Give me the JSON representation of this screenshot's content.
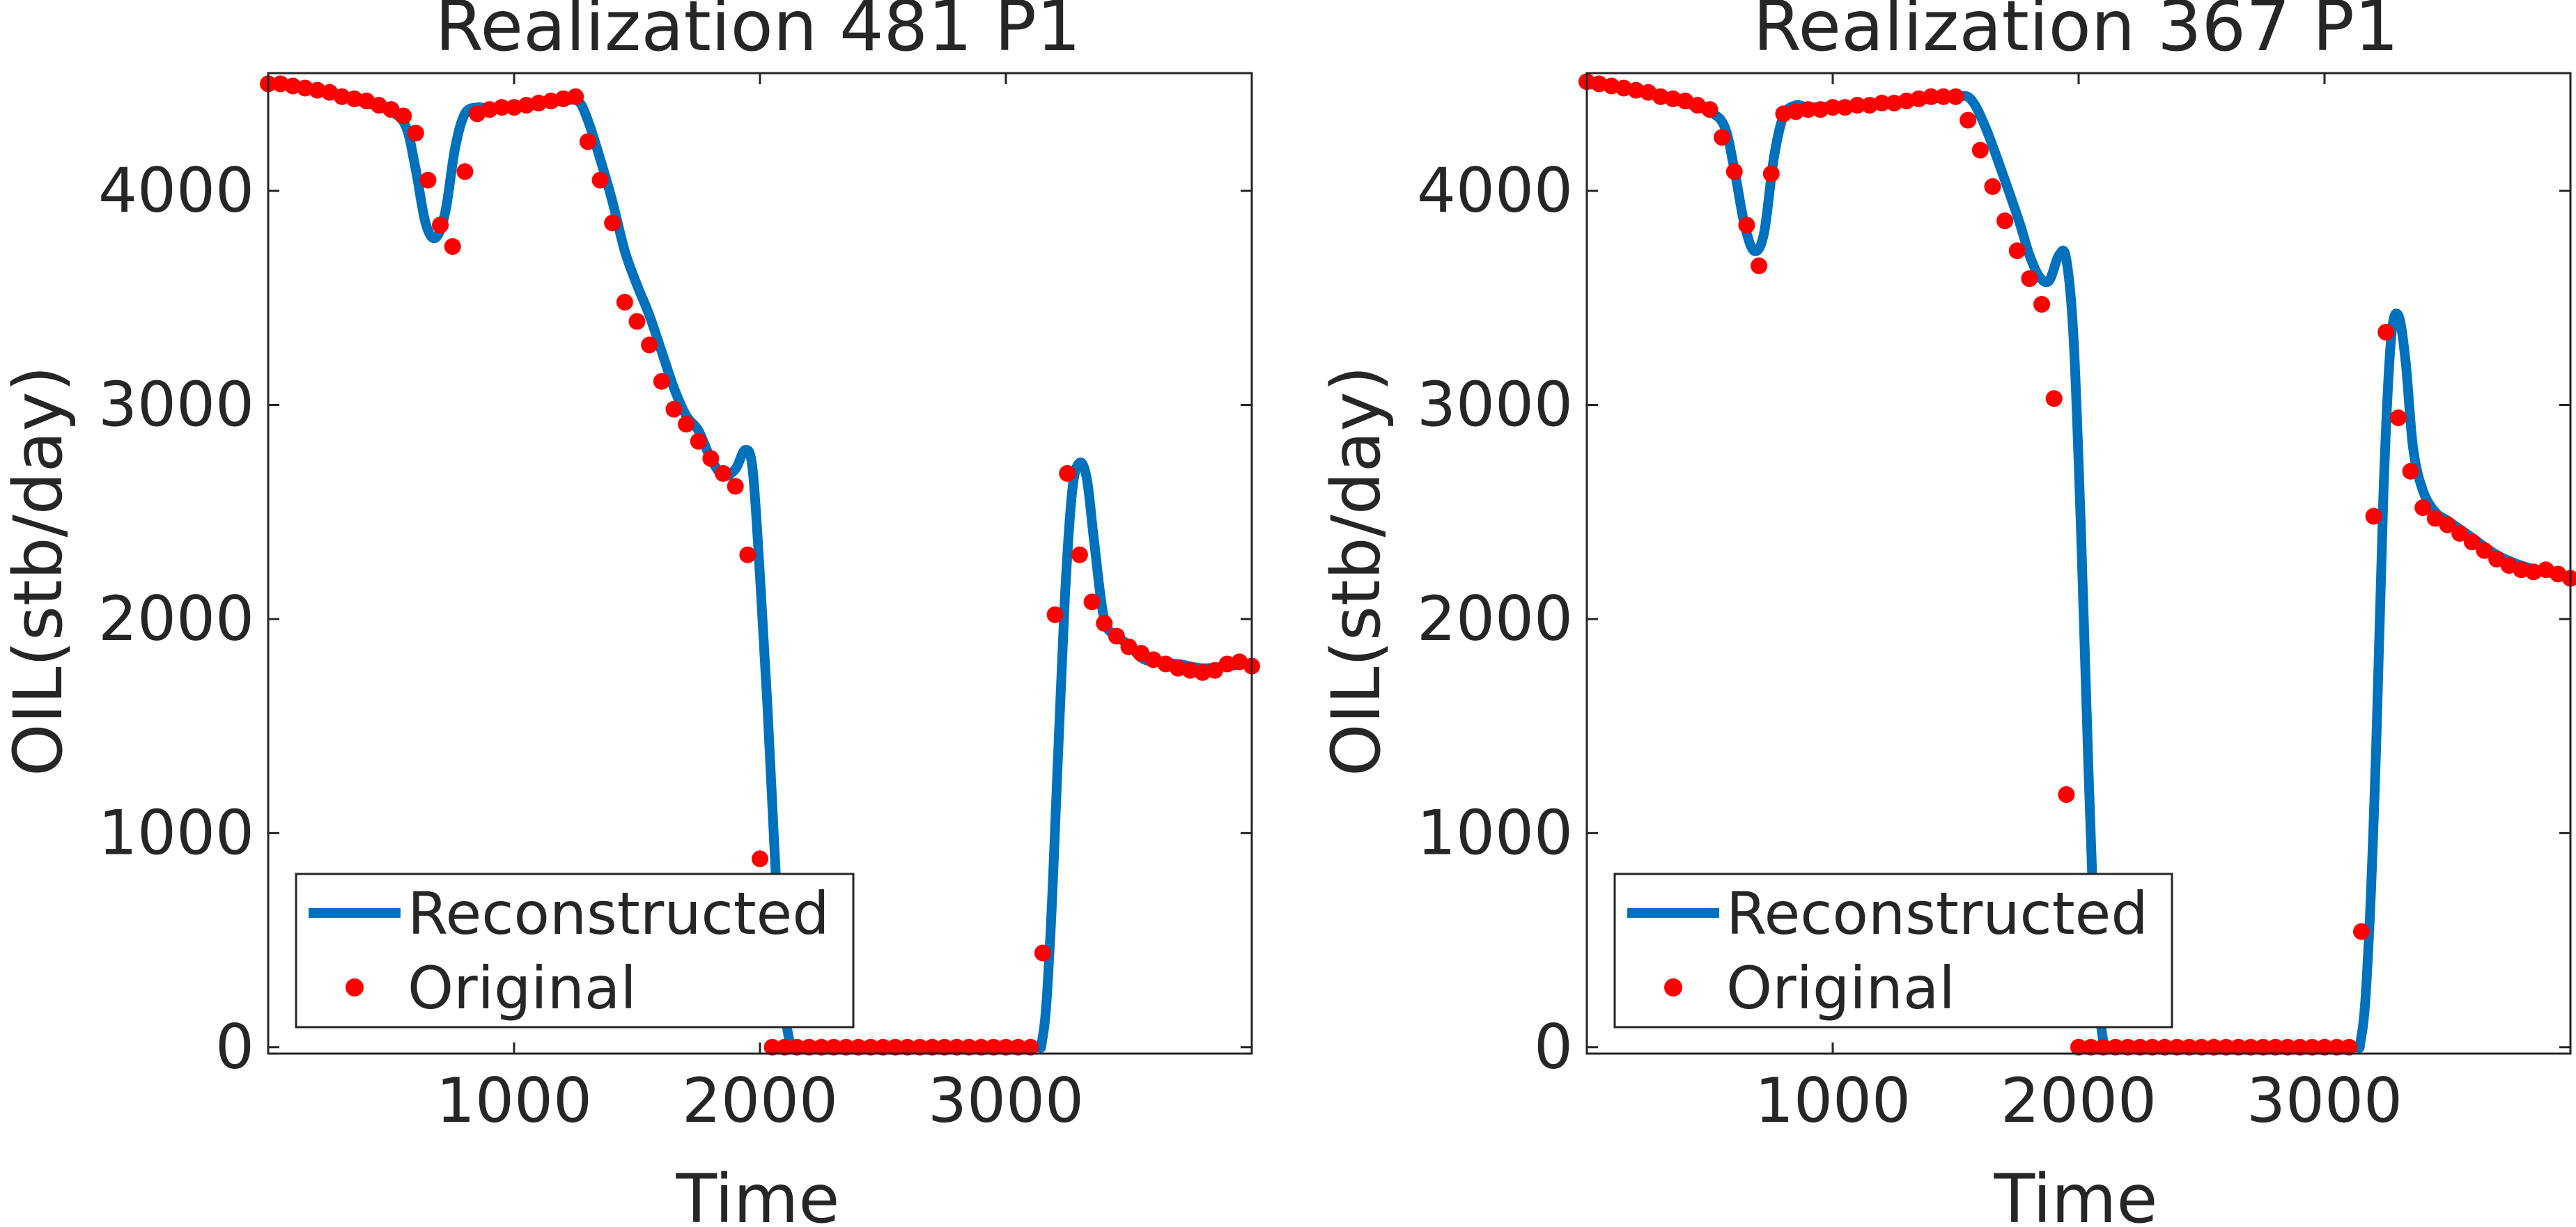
{
  "colors": {
    "reconstructed": "#0072BD",
    "original": "#FF0000",
    "axis": "#262626"
  },
  "chart_data": [
    {
      "type": "line",
      "title": "Realization 481 P1",
      "xlabel": "Time",
      "ylabel": "OIL(stb/day)",
      "xlim": [
        0,
        4000
      ],
      "ylim": [
        -30,
        4550
      ],
      "xticks": [
        1000,
        2000,
        3000
      ],
      "yticks": [
        0,
        1000,
        2000,
        3000,
        4000
      ],
      "xtick_labels": [
        "1000",
        "2000",
        "3000"
      ],
      "ytick_labels": [
        "0",
        "1000",
        "2000",
        "3000",
        "4000"
      ],
      "grid": false,
      "legend": {
        "placement": "bottom-left",
        "entries": [
          "Reconstructed",
          "Original"
        ]
      },
      "series": [
        {
          "name": "Reconstructed",
          "style": "line",
          "x": [
            0,
            100,
            200,
            300,
            400,
            500,
            560,
            600,
            640,
            680,
            720,
            760,
            800,
            850,
            900,
            1000,
            1100,
            1200,
            1260,
            1300,
            1350,
            1400,
            1450,
            1500,
            1550,
            1600,
            1650,
            1700,
            1750,
            1800,
            1850,
            1900,
            1940,
            1970,
            2000,
            2030,
            2060,
            2090,
            2120,
            2150,
            2200,
            2500,
            2800,
            3100,
            3150,
            3180,
            3210,
            3240,
            3270,
            3300,
            3330,
            3360,
            3400,
            3450,
            3500,
            3550,
            3600,
            3700,
            3800,
            3900,
            3980
          ],
          "y": [
            4500,
            4490,
            4470,
            4440,
            4410,
            4370,
            4300,
            4100,
            3850,
            3780,
            3900,
            4200,
            4360,
            4390,
            4385,
            4395,
            4410,
            4420,
            4420,
            4330,
            4150,
            3950,
            3720,
            3560,
            3420,
            3250,
            3080,
            2950,
            2880,
            2750,
            2670,
            2700,
            2790,
            2700,
            2200,
            1600,
            900,
            300,
            30,
            0,
            0,
            0,
            0,
            0,
            50,
            500,
            1300,
            2100,
            2600,
            2730,
            2650,
            2350,
            2000,
            1920,
            1880,
            1820,
            1800,
            1790,
            1770,
            1780,
            1790
          ]
        },
        {
          "name": "Original",
          "style": "scatter",
          "x": [
            0,
            50,
            100,
            150,
            200,
            250,
            300,
            350,
            400,
            450,
            500,
            550,
            600,
            650,
            700,
            750,
            800,
            850,
            900,
            950,
            1000,
            1050,
            1100,
            1150,
            1200,
            1250,
            1300,
            1350,
            1400,
            1450,
            1500,
            1550,
            1600,
            1650,
            1700,
            1750,
            1800,
            1850,
            1900,
            1950,
            2000,
            2050,
            2100,
            2150,
            2200,
            2250,
            2300,
            2350,
            2400,
            2450,
            2500,
            2550,
            2600,
            2650,
            2700,
            2750,
            2800,
            2850,
            2900,
            2950,
            3000,
            3050,
            3100,
            3150,
            3200,
            3250,
            3300,
            3350,
            3400,
            3450,
            3500,
            3550,
            3600,
            3650,
            3700,
            3750,
            3800,
            3850,
            3900,
            3950,
            4000
          ],
          "y": [
            4500,
            4500,
            4490,
            4480,
            4470,
            4460,
            4440,
            4430,
            4420,
            4400,
            4380,
            4350,
            4270,
            4050,
            3840,
            3740,
            4090,
            4360,
            4380,
            4390,
            4390,
            4400,
            4410,
            4420,
            4430,
            4440,
            4230,
            4050,
            3850,
            3480,
            3390,
            3280,
            3110,
            2980,
            2910,
            2830,
            2750,
            2680,
            2620,
            2300,
            880,
            0,
            0,
            0,
            0,
            0,
            0,
            0,
            0,
            0,
            0,
            0,
            0,
            0,
            0,
            0,
            0,
            0,
            0,
            0,
            0,
            0,
            0,
            440,
            2020,
            2680,
            2300,
            2080,
            1980,
            1920,
            1870,
            1840,
            1810,
            1790,
            1770,
            1760,
            1750,
            1760,
            1790,
            1800,
            1780
          ]
        }
      ]
    },
    {
      "type": "line",
      "title": "Realization 367 P1",
      "xlabel": "Time",
      "ylabel": "OIL(stb/day)",
      "xlim": [
        0,
        4000
      ],
      "ylim": [
        -30,
        4550
      ],
      "xticks": [
        1000,
        2000,
        3000
      ],
      "yticks": [
        0,
        1000,
        2000,
        3000,
        4000
      ],
      "xtick_labels": [
        "1000",
        "2000",
        "3000"
      ],
      "ytick_labels": [
        "0",
        "1000",
        "2000",
        "3000",
        "4000"
      ],
      "grid": false,
      "legend": {
        "placement": "bottom-left",
        "entries": [
          "Reconstructed",
          "Original"
        ]
      },
      "series": [
        {
          "name": "Reconstructed",
          "style": "line",
          "x": [
            0,
            100,
            200,
            300,
            400,
            500,
            560,
            600,
            640,
            680,
            720,
            760,
            800,
            850,
            900,
            1000,
            1100,
            1200,
            1300,
            1400,
            1500,
            1560,
            1620,
            1700,
            1760,
            1800,
            1840,
            1880,
            1920,
            1950,
            1980,
            2010,
            2040,
            2070,
            2100,
            2130,
            2160,
            2200,
            2500,
            2800,
            3100,
            3150,
            3180,
            3210,
            3240,
            3270,
            3300,
            3330,
            3360,
            3400,
            3450,
            3500,
            3550,
            3600,
            3700,
            3800,
            3900,
            3980
          ],
          "y": [
            4500,
            4490,
            4470,
            4440,
            4410,
            4370,
            4300,
            4100,
            3850,
            3720,
            3800,
            4150,
            4350,
            4400,
            4390,
            4395,
            4400,
            4410,
            4420,
            4430,
            4440,
            4430,
            4300,
            4050,
            3850,
            3700,
            3600,
            3580,
            3700,
            3680,
            3300,
            2400,
            1300,
            400,
            30,
            0,
            0,
            0,
            0,
            0,
            0,
            50,
            500,
            1400,
            2600,
            3300,
            3420,
            3200,
            2800,
            2600,
            2500,
            2460,
            2420,
            2380,
            2300,
            2250,
            2220,
            2200
          ]
        },
        {
          "name": "Original",
          "style": "scatter",
          "x": [
            0,
            50,
            100,
            150,
            200,
            250,
            300,
            350,
            400,
            450,
            500,
            550,
            600,
            650,
            700,
            750,
            800,
            850,
            900,
            950,
            1000,
            1050,
            1100,
            1150,
            1200,
            1250,
            1300,
            1350,
            1400,
            1450,
            1500,
            1550,
            1600,
            1650,
            1700,
            1750,
            1800,
            1850,
            1900,
            1950,
            2000,
            2050,
            2100,
            2150,
            2200,
            2250,
            2300,
            2350,
            2400,
            2450,
            2500,
            2550,
            2600,
            2650,
            2700,
            2750,
            2800,
            2850,
            2900,
            2950,
            3000,
            3050,
            3100,
            3150,
            3200,
            3250,
            3300,
            3350,
            3400,
            3450,
            3500,
            3550,
            3600,
            3650,
            3700,
            3750,
            3800,
            3850,
            3900,
            3950,
            4000
          ],
          "y": [
            4510,
            4500,
            4490,
            4480,
            4470,
            4460,
            4440,
            4430,
            4420,
            4400,
            4380,
            4250,
            4090,
            3840,
            3650,
            4080,
            4360,
            4370,
            4380,
            4380,
            4390,
            4390,
            4400,
            4400,
            4410,
            4410,
            4420,
            4430,
            4440,
            4440,
            4440,
            4330,
            4190,
            4020,
            3860,
            3720,
            3590,
            3470,
            3030,
            1180,
            0,
            0,
            0,
            0,
            0,
            0,
            0,
            0,
            0,
            0,
            0,
            0,
            0,
            0,
            0,
            0,
            0,
            0,
            0,
            0,
            0,
            0,
            0,
            540,
            2480,
            3340,
            2940,
            2690,
            2520,
            2470,
            2440,
            2400,
            2360,
            2320,
            2280,
            2250,
            2230,
            2220,
            2230,
            2210,
            2190
          ]
        }
      ]
    }
  ]
}
